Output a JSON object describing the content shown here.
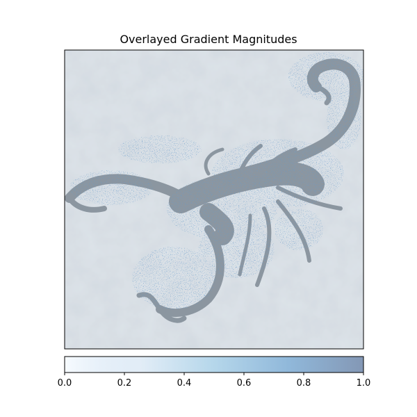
{
  "chart_data": {
    "type": "heatmap",
    "title": "Overlayed Gradient Magnitudes",
    "xlabel": "",
    "ylabel": "",
    "image_subject": "scorpion photograph (grayscale) overlaid with gradient-magnitude heatmap",
    "colorbar": {
      "orientation": "horizontal",
      "range": [
        0,
        1
      ],
      "ticks": [
        0.0,
        0.2,
        0.4,
        0.6,
        0.8,
        1.0
      ],
      "tick_labels": [
        "0.0",
        "0.2",
        "0.4",
        "0.6",
        "0.8",
        "1.0"
      ],
      "colormap_stops": [
        "#f7fbff",
        "#c6dbef",
        "#6baed6",
        "#2171b5",
        "#08306b"
      ],
      "overlay_alpha": 0.5
    },
    "grid": false
  }
}
